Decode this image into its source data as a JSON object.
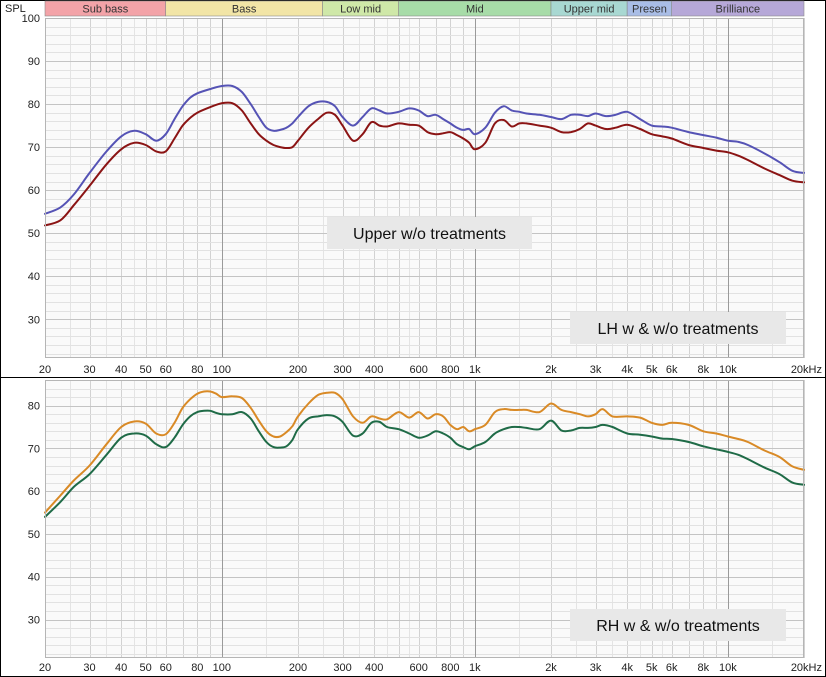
{
  "chart_data": [
    {
      "type": "line",
      "ylabel": "SPL",
      "xscale": "log",
      "xlim": [
        20,
        20000
      ],
      "ylim": [
        21,
        100
      ],
      "yticks": [
        "100",
        "90",
        "80",
        "70",
        "60",
        "50",
        "40",
        "30"
      ],
      "ytick_values": [
        100,
        90,
        80,
        70,
        60,
        50,
        40,
        30
      ],
      "xticks": [
        "20",
        "30",
        "40",
        "50",
        "60",
        "80",
        "100",
        "200",
        "300",
        "400",
        "600",
        "800",
        "1k",
        "2k",
        "3k",
        "4k",
        "5k",
        "6k",
        "8k",
        "10k",
        "20kHz"
      ],
      "xtick_values": [
        20,
        30,
        40,
        50,
        60,
        80,
        100,
        200,
        300,
        400,
        600,
        800,
        1000,
        2000,
        3000,
        4000,
        5000,
        6000,
        8000,
        10000,
        20000
      ],
      "bands": [
        {
          "label": "Sub bass",
          "from": 20,
          "to": 60,
          "color": "#f3a3a8"
        },
        {
          "label": "Bass",
          "from": 60,
          "to": 250,
          "color": "#f2e5a6"
        },
        {
          "label": "Low mid",
          "from": 250,
          "to": 500,
          "color": "#cfe8a8"
        },
        {
          "label": "Mid",
          "from": 500,
          "to": 2000,
          "color": "#a7dca8"
        },
        {
          "label": "Upper mid",
          "from": 2000,
          "to": 4000,
          "color": "#a8d8d2"
        },
        {
          "label": "Presen",
          "from": 4000,
          "to": 6000,
          "color": "#a9bde6"
        },
        {
          "label": "Brilliance",
          "from": 6000,
          "to": 20000,
          "color": "#b6a8d8"
        }
      ],
      "annotations": [
        "Upper w/o treatments",
        "LH w & w/o treatments"
      ],
      "series": [
        {
          "color": "#5553b5",
          "x": [
            20,
            23,
            26,
            30,
            35,
            40,
            45,
            50,
            55,
            60,
            65,
            70,
            75,
            80,
            90,
            100,
            110,
            120,
            130,
            140,
            150,
            160,
            170,
            180,
            190,
            200,
            220,
            240,
            260,
            280,
            300,
            330,
            360,
            390,
            420,
            450,
            500,
            550,
            600,
            650,
            700,
            750,
            800,
            850,
            900,
            950,
            1000,
            1100,
            1200,
            1300,
            1400,
            1500,
            1600,
            1800,
            2000,
            2200,
            2400,
            2600,
            2800,
            3000,
            3300,
            3600,
            4000,
            4500,
            5000,
            5500,
            6000,
            7000,
            8000,
            9000,
            10000,
            11000,
            12000,
            14000,
            16000,
            18000,
            20000
          ],
          "y": [
            54.5,
            56,
            59,
            64,
            69,
            72.5,
            73.8,
            73,
            71.5,
            73,
            76.5,
            79.5,
            81.5,
            82.5,
            83.5,
            84.2,
            84.2,
            82.8,
            80,
            77,
            74.5,
            73.8,
            74,
            74.5,
            75.5,
            77,
            79.5,
            80.5,
            80.5,
            79.5,
            77,
            75,
            77,
            79,
            78.5,
            77.8,
            78.2,
            79,
            78.5,
            77.2,
            77.5,
            76.5,
            75.5,
            74.5,
            74,
            74.2,
            73,
            74.5,
            78,
            79.5,
            78.5,
            78.2,
            77.8,
            77.5,
            77,
            76.5,
            77.5,
            77.5,
            77.2,
            77.8,
            77.2,
            77.5,
            78.2,
            76.5,
            75,
            74.8,
            74.5,
            73.5,
            72.8,
            72.2,
            71.5,
            71.2,
            70.5,
            68.5,
            66.5,
            64.5,
            64
          ]
        },
        {
          "color": "#8b1414",
          "x": [
            20,
            23,
            26,
            30,
            35,
            40,
            45,
            50,
            55,
            60,
            65,
            70,
            75,
            80,
            90,
            100,
            110,
            120,
            130,
            140,
            150,
            160,
            170,
            180,
            190,
            200,
            220,
            240,
            260,
            280,
            300,
            330,
            360,
            390,
            420,
            450,
            500,
            550,
            600,
            650,
            700,
            750,
            800,
            850,
            900,
            950,
            1000,
            1100,
            1200,
            1300,
            1400,
            1500,
            1600,
            1800,
            2000,
            2200,
            2400,
            2600,
            2800,
            3000,
            3300,
            3600,
            4000,
            4500,
            5000,
            5500,
            6000,
            7000,
            8000,
            9000,
            10000,
            11000,
            12000,
            14000,
            16000,
            18000,
            20000
          ],
          "y": [
            51.8,
            53,
            56.5,
            61,
            66,
            69.5,
            71,
            70.5,
            69,
            69,
            72,
            75,
            76.8,
            78,
            79.3,
            80.2,
            80.2,
            78.5,
            75.5,
            73,
            71.5,
            70.5,
            70,
            69.8,
            70,
            71.5,
            74.5,
            76.5,
            78,
            77.5,
            75,
            71.5,
            73,
            75.8,
            75,
            74.8,
            75.5,
            75.2,
            75,
            73.5,
            73,
            73.2,
            73.5,
            72.8,
            72,
            71,
            69.5,
            71,
            75.5,
            76.3,
            74.8,
            75.5,
            75.5,
            75,
            74.5,
            73.5,
            73.5,
            74.2,
            75.5,
            75,
            74.2,
            74.5,
            75.2,
            74.2,
            73,
            72.5,
            72,
            70.5,
            69.8,
            69.2,
            68.8,
            68,
            67,
            65,
            63.5,
            62.2,
            61.8
          ]
        }
      ]
    },
    {
      "type": "line",
      "xscale": "log",
      "xlim": [
        20,
        20000
      ],
      "ylim": [
        21,
        86
      ],
      "yticks": [
        "80",
        "70",
        "60",
        "50",
        "40",
        "30"
      ],
      "ytick_values": [
        80,
        70,
        60,
        50,
        40,
        30
      ],
      "xticks": [
        "20",
        "30",
        "40",
        "50",
        "60",
        "80",
        "100",
        "200",
        "300",
        "400",
        "600",
        "800",
        "1k",
        "2k",
        "3k",
        "4k",
        "5k",
        "6k",
        "8k",
        "10k",
        "20kHz"
      ],
      "xtick_values": [
        20,
        30,
        40,
        50,
        60,
        80,
        100,
        200,
        300,
        400,
        600,
        800,
        1000,
        2000,
        3000,
        4000,
        5000,
        6000,
        8000,
        10000,
        20000
      ],
      "annotations": [
        "RH w & w/o treatments"
      ],
      "series": [
        {
          "color": "#d98a26",
          "x": [
            20,
            23,
            26,
            30,
            35,
            40,
            45,
            50,
            55,
            60,
            65,
            70,
            75,
            80,
            85,
            90,
            95,
            100,
            110,
            120,
            130,
            140,
            150,
            160,
            170,
            180,
            190,
            200,
            220,
            240,
            260,
            280,
            300,
            330,
            360,
            390,
            420,
            450,
            500,
            550,
            600,
            650,
            700,
            750,
            800,
            850,
            900,
            950,
            1000,
            1100,
            1200,
            1300,
            1400,
            1500,
            1600,
            1800,
            2000,
            2200,
            2400,
            2600,
            2800,
            3000,
            3200,
            3500,
            4000,
            4500,
            5000,
            5500,
            6000,
            7000,
            8000,
            9000,
            10000,
            11000,
            12000,
            14000,
            16000,
            18000,
            20000
          ],
          "y": [
            55,
            59,
            62.5,
            66,
            71,
            75,
            76.3,
            75.8,
            73.5,
            73.3,
            76,
            79.5,
            81.5,
            82.8,
            83.3,
            83.3,
            82.8,
            82,
            82.2,
            81.8,
            79.5,
            76.5,
            74,
            72.8,
            72.8,
            73.8,
            75.2,
            77.5,
            80.5,
            82.5,
            83,
            83,
            81.5,
            77.5,
            76,
            77.5,
            77,
            76.8,
            78.5,
            77.2,
            78.5,
            77,
            78,
            77.5,
            75.5,
            74.5,
            75,
            74,
            74.5,
            75.5,
            78.5,
            79.2,
            79,
            79,
            79,
            78.5,
            80.5,
            79,
            78.5,
            78,
            77.5,
            78,
            79.2,
            77.5,
            77.5,
            77.2,
            76,
            75.5,
            76,
            75.5,
            74,
            73.5,
            72.8,
            72.2,
            71.5,
            69.5,
            68,
            65.8,
            65
          ]
        },
        {
          "color": "#1f6b47",
          "x": [
            20,
            23,
            26,
            30,
            35,
            40,
            45,
            50,
            55,
            60,
            65,
            70,
            75,
            80,
            85,
            90,
            95,
            100,
            110,
            120,
            130,
            140,
            150,
            160,
            170,
            180,
            190,
            200,
            220,
            240,
            260,
            280,
            300,
            330,
            360,
            390,
            420,
            450,
            500,
            550,
            600,
            650,
            700,
            750,
            800,
            850,
            900,
            950,
            1000,
            1100,
            1200,
            1300,
            1400,
            1500,
            1600,
            1800,
            2000,
            2200,
            2400,
            2600,
            2800,
            3000,
            3200,
            3500,
            4000,
            4500,
            5000,
            5500,
            6000,
            7000,
            8000,
            9000,
            10000,
            11000,
            12000,
            14000,
            16000,
            18000,
            20000
          ],
          "y": [
            54,
            57.5,
            61,
            64,
            68.5,
            72.5,
            73.5,
            73,
            71,
            70.3,
            72.5,
            75.5,
            77.5,
            78.5,
            78.8,
            78.8,
            78.3,
            78,
            78,
            78.5,
            77,
            74,
            71.5,
            70.3,
            70.2,
            70.5,
            72,
            74.5,
            77,
            77.5,
            77.8,
            77.5,
            76.2,
            73,
            73.5,
            76,
            76.2,
            75,
            74.5,
            73.5,
            72.5,
            73,
            74,
            73.5,
            72.5,
            71,
            70.3,
            69.8,
            70.5,
            71.5,
            73.5,
            74.5,
            75,
            75,
            74.8,
            74.5,
            76.5,
            74.2,
            74.2,
            74.8,
            74.8,
            75,
            75.5,
            75,
            73.5,
            73.2,
            72.8,
            72.3,
            72.2,
            71.5,
            70.5,
            69.8,
            69.2,
            68.5,
            67.5,
            65.5,
            64,
            62,
            61.5
          ]
        }
      ]
    }
  ]
}
